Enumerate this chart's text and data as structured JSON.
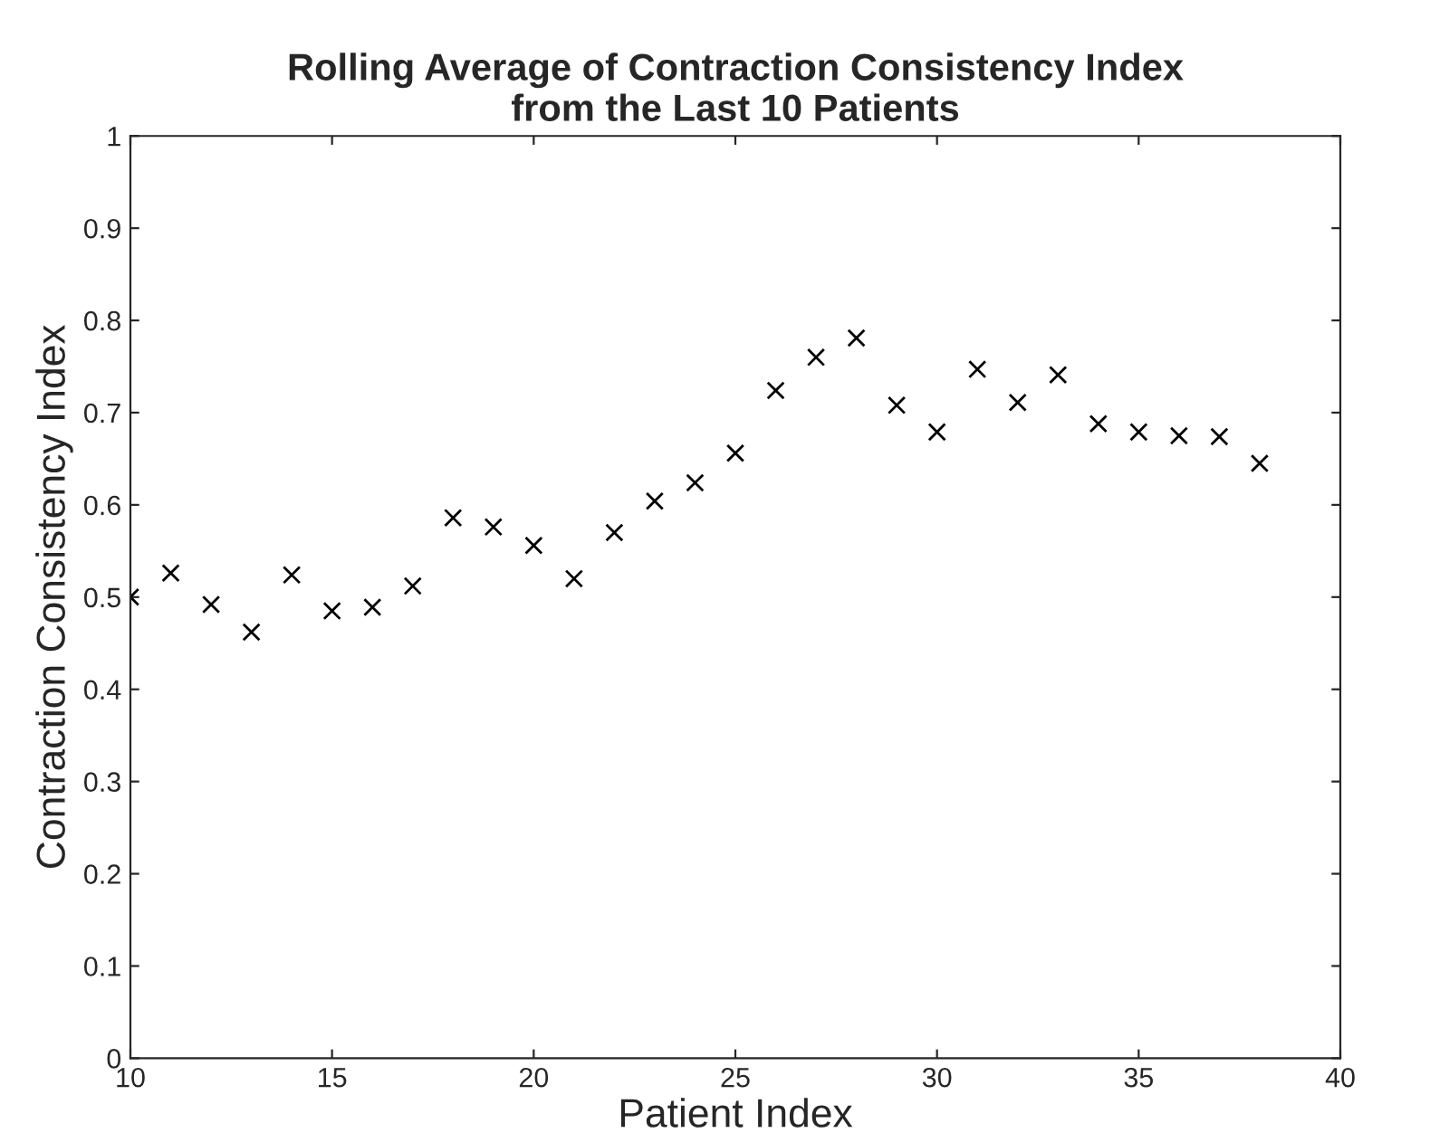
{
  "chart_data": {
    "type": "scatter",
    "title": "Rolling Average of Contraction Consistency Index\nfrom the Last 10 Patients",
    "xlabel": "Patient Index",
    "ylabel": "Contraction Consistency Index",
    "x": [
      10,
      11,
      12,
      13,
      14,
      15,
      16,
      17,
      18,
      19,
      20,
      21,
      22,
      23,
      24,
      25,
      26,
      27,
      28,
      29,
      30,
      31,
      32,
      33,
      34,
      35,
      36,
      37,
      38
    ],
    "series": [
      {
        "color": "#000000",
        "values": [
          0.5,
          0.526,
          0.492,
          0.462,
          0.524,
          0.485,
          0.489,
          0.512,
          0.586,
          0.576,
          0.556,
          0.52,
          0.57,
          0.604,
          0.624,
          0.656,
          0.724,
          0.76,
          0.781,
          0.708,
          0.679,
          0.747,
          0.711,
          0.741,
          0.688,
          0.679,
          0.675,
          0.674,
          0.645
        ]
      }
    ],
    "marker": "cross",
    "xlim": [
      10,
      40
    ],
    "xticks": [
      10,
      15,
      20,
      25,
      30,
      35,
      40
    ],
    "ylim": [
      0,
      1
    ],
    "yticks": [
      0,
      0.1,
      0.2,
      0.3,
      0.4,
      0.5,
      0.6,
      0.7,
      0.8,
      0.9,
      1
    ],
    "grid": false,
    "legend": false
  }
}
